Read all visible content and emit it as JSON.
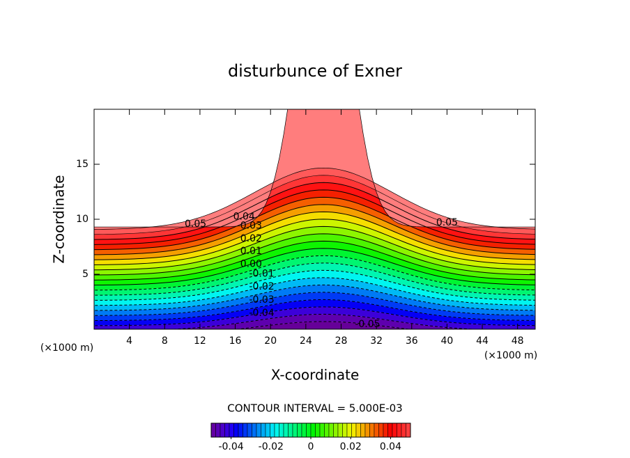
{
  "chart_data": {
    "type": "contour",
    "title": "disturbunce of Exner",
    "x_label": "X-coordinate",
    "y_label": "Z-coordinate",
    "x_unit": "(×1000 m)",
    "x_unit_right": "(×1000 m)",
    "xlim": [
      0,
      50
    ],
    "ylim": [
      0,
      20
    ],
    "xticks": [
      4,
      8,
      12,
      16,
      20,
      24,
      28,
      32,
      36,
      40,
      44,
      48
    ],
    "yticks": [
      5,
      10,
      15
    ],
    "contour_interval_text": "CONTOUR INTERVAL = 5.000E-03",
    "contour_labels": [
      {
        "value": 0.05,
        "label": "0.05"
      },
      {
        "value": 0.05,
        "label": "0.05"
      },
      {
        "value": 0.04,
        "label": "0.04"
      },
      {
        "value": 0.03,
        "label": "0.03"
      },
      {
        "value": 0.02,
        "label": "0.02"
      },
      {
        "value": 0.01,
        "label": "0.01"
      },
      {
        "value": 0,
        "label": "0.00"
      },
      {
        "value": -0.01,
        "label": "-0.01"
      },
      {
        "value": -0.02,
        "label": "-0.02"
      },
      {
        "value": -0.03,
        "label": "-0.03"
      },
      {
        "value": -0.04,
        "label": "-0.04"
      },
      {
        "value": -0.05,
        "label": "-0.05"
      }
    ],
    "colorbar_lim": [
      -0.05,
      0.05
    ],
    "colorbar_ticks": [
      -0.04,
      -0.02,
      0,
      0.02,
      0.04
    ]
  }
}
